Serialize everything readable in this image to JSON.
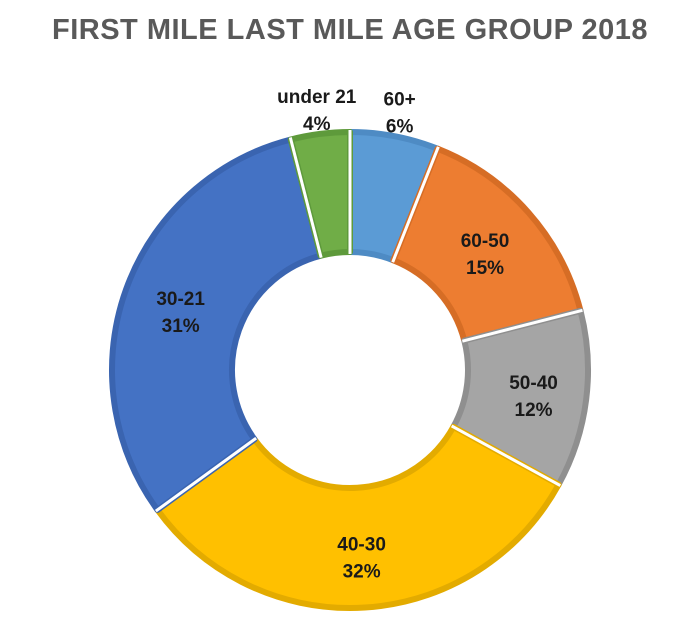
{
  "chart_data": {
    "type": "pie",
    "variant": "doughnut",
    "title": "FIRST MILE LAST MILE AGE GROUP 2018",
    "categories": [
      "60+",
      "60-50",
      "50-40",
      "40-30",
      "30-21",
      "under 21"
    ],
    "values": [
      6,
      15,
      12,
      32,
      31,
      4
    ],
    "value_labels": [
      "6%",
      "15%",
      "12%",
      "32%",
      "31%",
      "4%"
    ],
    "unit": "%",
    "colors": [
      "#5b9bd5",
      "#ed7d31",
      "#a5a5a5",
      "#ffc000",
      "#4472c4",
      "#70ad47"
    ],
    "border_colors": [
      "#4e8bc4",
      "#d66d25",
      "#8f8f8f",
      "#e3ab00",
      "#3a64b0",
      "#5e9a3b"
    ],
    "legend": "none",
    "data_labels": "category-and-percent"
  }
}
